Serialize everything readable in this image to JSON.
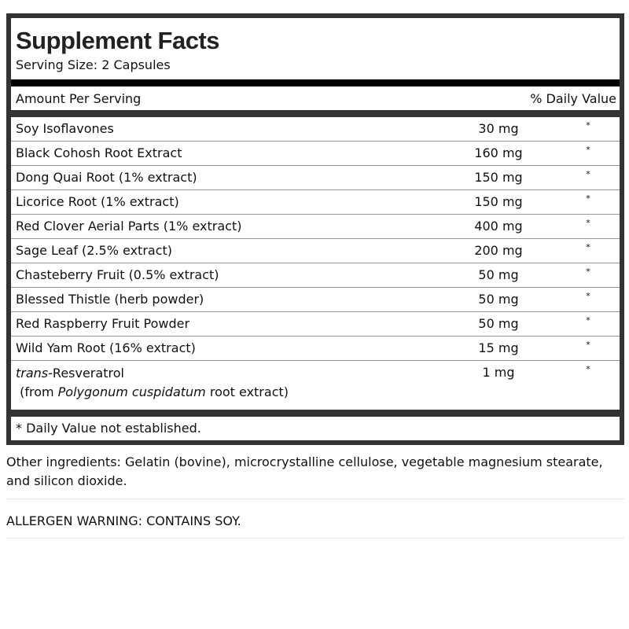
{
  "title": "Supplement Facts",
  "serving_size": "Serving Size: 2 Capsules",
  "header": {
    "amount": "Amount Per Serving",
    "dv": "% Daily Value"
  },
  "rows": [
    {
      "name": "Soy Isoflavones",
      "amount": "30 mg",
      "dv": "*"
    },
    {
      "name": "Black Cohosh Root Extract",
      "amount": "160 mg",
      "dv": "*"
    },
    {
      "name": "Dong Quai Root (1% extract)",
      "amount": "150 mg",
      "dv": "*"
    },
    {
      "name": "Licorice Root (1% extract)",
      "amount": "150 mg",
      "dv": "*"
    },
    {
      "name": "Red Clover Aerial Parts (1% extract)",
      "amount": "400 mg",
      "dv": "*"
    },
    {
      "name": "Sage Leaf (2.5% extract)",
      "amount": "200 mg",
      "dv": "*"
    },
    {
      "name": "Chasteberry Fruit (0.5% extract)",
      "amount": "50 mg",
      "dv": "*"
    },
    {
      "name": "Blessed Thistle (herb powder)",
      "amount": "50 mg",
      "dv": "*"
    },
    {
      "name": "Red Raspberry Fruit Powder",
      "amount": "50 mg",
      "dv": "*"
    },
    {
      "name": "Wild Yam Root (16% extract)",
      "amount": "15 mg",
      "dv": "*"
    }
  ],
  "resveratrol": {
    "prefix": "trans",
    "name": "-Resveratrol",
    "from_open": " (from ",
    "species": "Polygonum cuspidatum",
    "from_close": " root extract)",
    "amount": "1 mg",
    "dv": "*"
  },
  "footnote": "* Daily Value not established.",
  "other_ingredients": "Other ingredients: Gelatin (bovine), microcrystalline cellulose, vegetable magnesium stearate, and silicon dioxide.",
  "allergen": "ALLERGEN WARNING: CONTAINS SOY."
}
